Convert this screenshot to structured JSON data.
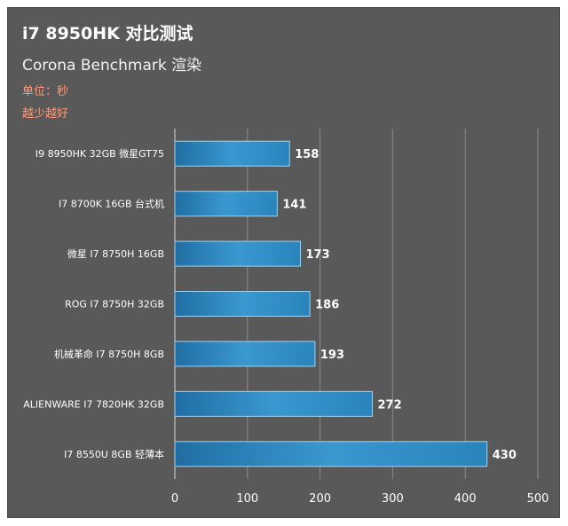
{
  "chart_data": {
    "type": "bar",
    "orientation": "horizontal",
    "title": "i7 8950HK 对比测试",
    "subtitle": "Corona Benchmark 渲染",
    "notes": [
      "单位：秒",
      "越少越好"
    ],
    "categories": [
      "I9 8950HK 32GB 微星GT75",
      "I7 8700K 16GB 台式机",
      "微星 I7 8750H 16GB",
      "ROG I7 8750H 32GB",
      "机械革命 I7 8750H 8GB",
      "ALIENWARE I7 7820HK 32GB",
      "I7 8550U 8GB 轻薄本"
    ],
    "values": [
      158,
      141,
      173,
      186,
      193,
      272,
      430
    ],
    "xlim": [
      0,
      500
    ],
    "xticks": [
      0,
      100,
      200,
      300,
      400,
      500
    ],
    "grid": true,
    "bar_color": "#2e8bc0",
    "bar_highlight": "#5fb3e0",
    "background": "#595959",
    "note_color": "#ff9a7a"
  }
}
